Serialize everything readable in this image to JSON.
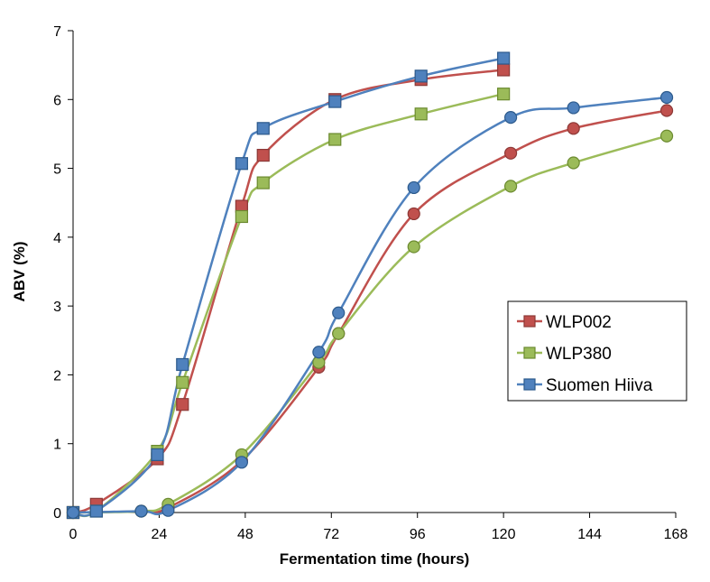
{
  "chart_data": {
    "type": "line",
    "title": "",
    "xlabel": "Fermentation time (hours)",
    "ylabel": "ABV (%)",
    "xlim": [
      0,
      168
    ],
    "ylim": [
      0,
      7
    ],
    "x_ticks": [
      "0",
      "24",
      "48",
      "72",
      "96",
      "120",
      "144",
      "168"
    ],
    "y_ticks": [
      "0",
      "1",
      "2",
      "3",
      "4",
      "5",
      "6",
      "7"
    ],
    "grid": false,
    "legend_position": "right",
    "series": [
      {
        "name": "WLP002",
        "color": "#c0504d",
        "edge": "#8c3836",
        "marker": "square",
        "x": [
          0,
          6.5,
          23.5,
          30.5,
          47,
          53,
          73,
          97,
          120
        ],
        "y": [
          0,
          0.12,
          0.78,
          1.57,
          4.45,
          5.19,
          6.0,
          6.29,
          6.43
        ]
      },
      {
        "name": "WLP380",
        "color": "#9bbb59",
        "edge": "#6b8a2f",
        "marker": "square",
        "x": [
          0,
          6.5,
          23.5,
          30.5,
          47,
          53,
          73,
          97,
          120
        ],
        "y": [
          0,
          0.02,
          0.89,
          1.89,
          4.3,
          4.79,
          5.42,
          5.79,
          6.08
        ]
      },
      {
        "name": "Suomen Hiiva",
        "color": "#4f81bd",
        "edge": "#2c5a8c",
        "marker": "square",
        "x": [
          0,
          6.5,
          23.5,
          30.5,
          47,
          53,
          73,
          97,
          120
        ],
        "y": [
          0,
          0.02,
          0.84,
          2.15,
          5.07,
          5.58,
          5.97,
          6.34,
          6.6
        ]
      },
      {
        "name": "",
        "color": "#c0504d",
        "edge": "#8c3836",
        "marker": "circle",
        "x": [
          0,
          19,
          26.5,
          47,
          68.5,
          74,
          95,
          122,
          139.5,
          165.5
        ],
        "y": [
          0,
          0.02,
          0.07,
          0.75,
          2.11,
          2.6,
          4.34,
          5.22,
          5.58,
          5.84
        ]
      },
      {
        "name": "",
        "color": "#9bbb59",
        "edge": "#6b8a2f",
        "marker": "circle",
        "x": [
          0,
          19,
          26.5,
          47,
          68.5,
          74,
          95,
          122,
          139.5,
          165.5
        ],
        "y": [
          0,
          0.02,
          0.12,
          0.84,
          2.18,
          2.6,
          3.86,
          4.74,
          5.08,
          5.47
        ]
      },
      {
        "name": "",
        "color": "#4f81bd",
        "edge": "#2c5a8c",
        "marker": "circle",
        "x": [
          0,
          19,
          26.5,
          47,
          68.5,
          74,
          95,
          122,
          139.5,
          165.5
        ],
        "y": [
          0,
          0.02,
          0.03,
          0.73,
          2.33,
          2.9,
          4.72,
          5.74,
          5.88,
          6.03
        ]
      }
    ]
  }
}
